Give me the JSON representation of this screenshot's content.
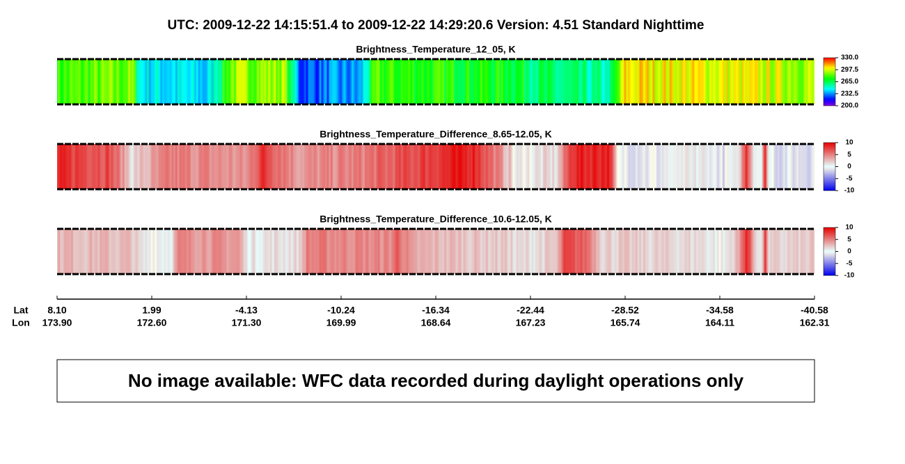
{
  "header": {
    "title": "UTC:  2009-12-22   14:15:51.4  to  2009-12-22   14:29:20.6    Version: 4.51  Standard Nighttime"
  },
  "panels": [
    {
      "title": "Brightness_Temperature_12_05, K",
      "colorbar": {
        "lim": [
          200,
          330
        ],
        "ticks": [
          {
            "value": 330,
            "label": "330.0"
          },
          {
            "value": 297.5,
            "label": "297.5"
          },
          {
            "value": 265,
            "label": "265.0"
          },
          {
            "value": 232.5,
            "label": "232.5"
          },
          {
            "value": 200,
            "label": "200.0"
          }
        ]
      }
    },
    {
      "title": "Brightness_Temperature_Difference_8.65-12.05, K",
      "colorbar": {
        "lim": [
          -10,
          10
        ],
        "ticks": [
          10,
          5,
          0,
          -5,
          -10
        ]
      }
    },
    {
      "title": "Brightness_Temperature_Difference_10.6-12.05, K",
      "colorbar": {
        "lim": [
          -10,
          10
        ],
        "ticks": [
          10,
          5,
          0,
          -5,
          -10
        ]
      }
    }
  ],
  "track": {
    "lat_label": "Lat",
    "lon_label": "Lon",
    "lat": [
      "8.10",
      "1.99",
      "-4.13",
      "-10.24",
      "-16.34",
      "-22.44",
      "-28.52",
      "-34.58",
      "-40.58"
    ],
    "lon": [
      "173.90",
      "172.60",
      "171.30",
      "169.99",
      "168.64",
      "167.23",
      "165.74",
      "164.11",
      "162.31"
    ]
  },
  "note": "No image available: WFC data recorded during daylight operations only"
}
